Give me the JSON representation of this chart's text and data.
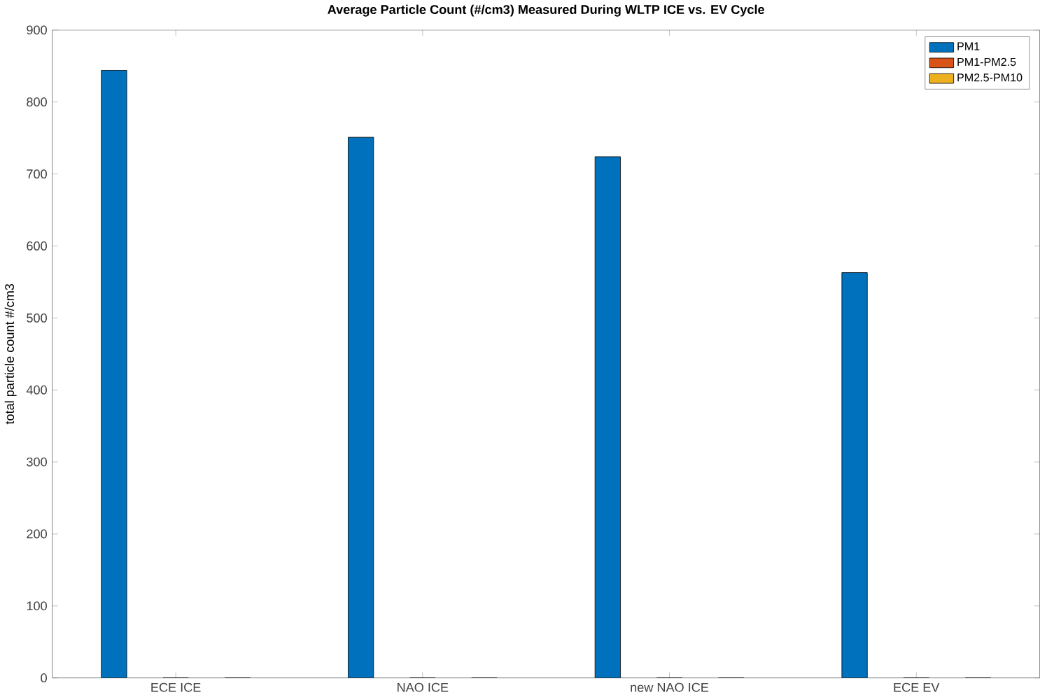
{
  "chart_data": {
    "type": "bar",
    "title": "Average Particle Count (#/cm3) Measured During WLTP ICE vs. EV Cycle",
    "ylabel": "total particle count #/cm3",
    "categories": [
      "ECE ICE",
      "NAO ICE",
      "new NAO ICE",
      "ECE EV"
    ],
    "series": [
      {
        "name": "PM1",
        "color": "#0072bd",
        "values": [
          844,
          751,
          724,
          563
        ]
      },
      {
        "name": "PM1-PM2.5",
        "color": "#d95319",
        "values": [
          0,
          0,
          0,
          0
        ]
      },
      {
        "name": "PM2.5-PM10",
        "color": "#edb120",
        "values": [
          0,
          0,
          0,
          0
        ]
      }
    ],
    "ylim": [
      0,
      900
    ],
    "yticks": [
      0,
      100,
      200,
      300,
      400,
      500,
      600,
      700,
      800,
      900
    ],
    "legend": "top right",
    "grid": false
  }
}
